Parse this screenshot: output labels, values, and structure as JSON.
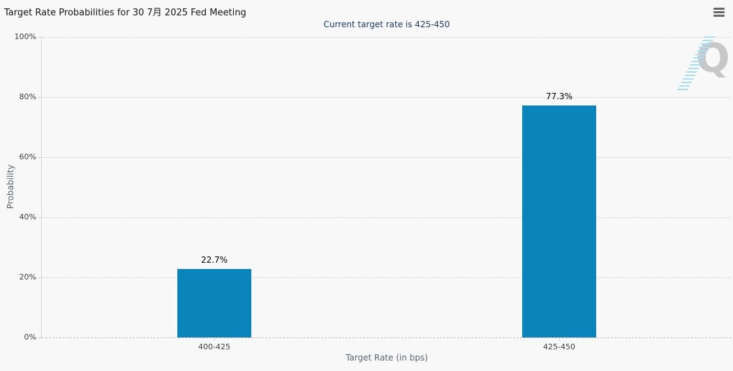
{
  "header": {
    "title": "Target Rate Probabilities for 30 7月 2025 Fed Meeting",
    "menu_icon": "hamburger-icon"
  },
  "chart_data": {
    "type": "bar",
    "title": "Target Rate Probabilities for 30 7月 2025 Fed Meeting",
    "subtitle": "Current target rate is 425-450",
    "categories": [
      "400-425",
      "425-450"
    ],
    "values": [
      22.7,
      77.3
    ],
    "value_labels": [
      "22.7%",
      "77.3%"
    ],
    "xlabel": "Target Rate (in bps)",
    "ylabel": "Probability",
    "ylim": [
      0,
      100
    ],
    "yticks": [
      0,
      20,
      40,
      60,
      80,
      100
    ],
    "ytick_labels": [
      "0%",
      "20%",
      "40%",
      "60%",
      "80%",
      "100%"
    ],
    "legend": "none",
    "grid": "horizontal-dotted",
    "bar_color": "#0a84ba",
    "bar_label_color": "#000000"
  },
  "watermark": {
    "letter": "Q"
  },
  "colors": {
    "background": "#f8f8f8",
    "title_text": "#141414",
    "subtitle_text": "#1c3a6b",
    "axis_title_text": "#5b6470",
    "tick_text": "#3c3c3c",
    "gridline": "#cfcfcf",
    "bar": "#0a84ba",
    "watermark_gray": "#c7c7c7",
    "watermark_blue": "#a8ddf5",
    "menu_icon": "#676767"
  }
}
